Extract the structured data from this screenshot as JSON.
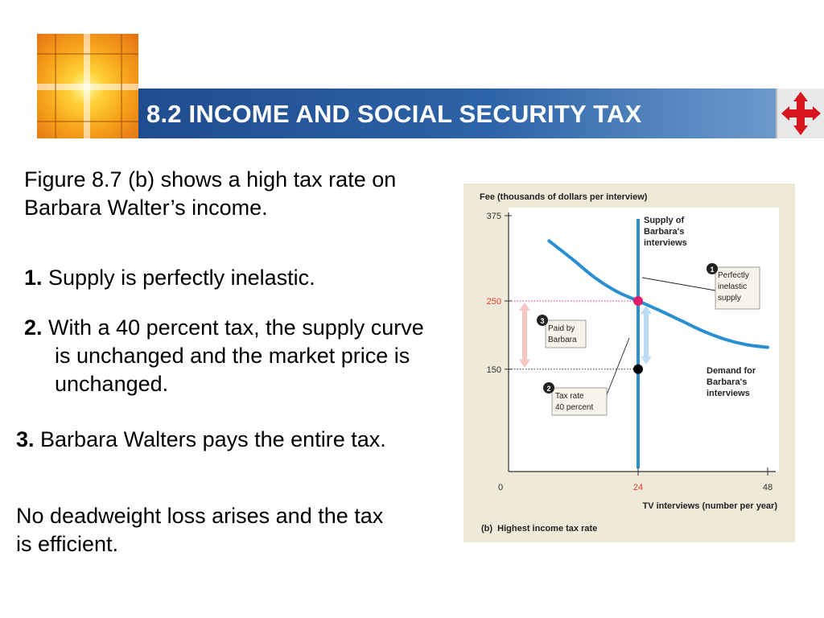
{
  "header": {
    "title": "8.2 INCOME AND SOCIAL SECURITY TAX",
    "nav_icon": "four-way-arrow-icon",
    "logo_icon": "cross-window-logo-icon"
  },
  "body_text": {
    "intro": "Figure 8.7 (b) shows a high tax rate on Barbara Walter’s income.",
    "item1_num": "1.",
    "item1_text": " Supply is perfectly inelastic.",
    "item2_num": "2.",
    "item2_text": " With a 40 percent tax, the supply curve is unchanged and the market price is unchanged.",
    "item3_num": "3.",
    "item3_text": " Barbara Walters pays the entire tax.",
    "conclusion": "No deadweight loss arises and the tax is efficient."
  },
  "chart_data": {
    "type": "line",
    "ylabel": "Fee (thousands of dollars per interview)",
    "xlabel": "TV interviews (number per year)",
    "caption": "(b)  Highest income tax rate",
    "xlim": [
      0,
      48
    ],
    "ylim": [
      0,
      375
    ],
    "x_ticks": [
      "0",
      "24",
      "48"
    ],
    "y_ticks": [
      "150",
      "250",
      "375"
    ],
    "series": [
      {
        "name": "Supply of Barbara's interviews",
        "type": "vertical",
        "x": 24
      },
      {
        "name": "Demand for Barbara's interviews",
        "points": [
          [
            7.5,
            338
          ],
          [
            12,
            310
          ],
          [
            16,
            284
          ],
          [
            20,
            264
          ],
          [
            24,
            250
          ],
          [
            28,
            236
          ],
          [
            32,
            221
          ],
          [
            36,
            206
          ],
          [
            40,
            194
          ],
          [
            44,
            186
          ],
          [
            48,
            182
          ]
        ]
      }
    ],
    "points": [
      {
        "x": 24,
        "y": 250,
        "color": "#e0206b"
      },
      {
        "x": 24,
        "y": 150,
        "color": "#000000"
      }
    ],
    "annotations": [
      {
        "number": "1",
        "text": "Perfectly inelastic supply"
      },
      {
        "number": "2",
        "text": "Tax rate 40 percent"
      },
      {
        "number": "3",
        "text": "Paid by Barbara"
      }
    ],
    "highlight_tick_color": "#e8392f",
    "supply_color": "#2a8fd0",
    "demand_color": "#2a8fd0"
  }
}
